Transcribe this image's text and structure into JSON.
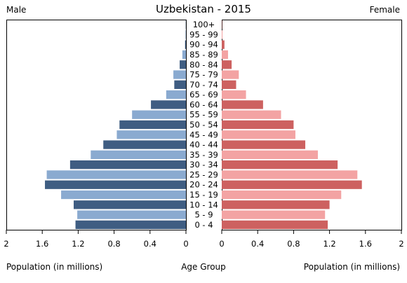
{
  "chart_data": {
    "type": "bar",
    "title": "Uzbekistan - 2015",
    "left_label": "Male",
    "right_label": "Female",
    "xlabel_left": "Population (in millions)",
    "xlabel_center": "Age Group",
    "xlabel_right": "Population (in millions)",
    "xlim": [
      0,
      2
    ],
    "ticks": [
      "2",
      "1.6",
      "1.2",
      "0.8",
      "0.4",
      "0",
      "0",
      "0.4",
      "0.8",
      "1.2",
      "1.6",
      "2"
    ],
    "tick_values_left": [
      2,
      1.6,
      1.2,
      0.8,
      0.4,
      0
    ],
    "tick_values_right": [
      0,
      0.4,
      0.8,
      1.2,
      1.6,
      2
    ],
    "categories": [
      "100+",
      "95 - 99",
      "90 - 94",
      "85 - 89",
      "80 - 84",
      "75 - 79",
      "70 - 74",
      "65 - 69",
      "60 - 64",
      "55 - 59",
      "50 - 54",
      "45 - 49",
      "40 - 44",
      "35 - 39",
      "30 - 34",
      "25 - 29",
      "20 - 24",
      "15 - 19",
      "10 - 14",
      "5 - 9",
      "0 - 4"
    ],
    "series": [
      {
        "name": "Male",
        "values": [
          0.002,
          0.004,
          0.01,
          0.04,
          0.07,
          0.14,
          0.13,
          0.22,
          0.39,
          0.6,
          0.74,
          0.77,
          0.92,
          1.06,
          1.29,
          1.55,
          1.57,
          1.39,
          1.25,
          1.21,
          1.23
        ]
      },
      {
        "name": "Female",
        "values": [
          0.003,
          0.008,
          0.03,
          0.07,
          0.11,
          0.19,
          0.16,
          0.27,
          0.46,
          0.66,
          0.8,
          0.82,
          0.93,
          1.07,
          1.29,
          1.51,
          1.56,
          1.33,
          1.2,
          1.15,
          1.18
        ]
      }
    ],
    "colors": {
      "male_dark": "#3f5d82",
      "male_light": "#8aaad0",
      "female_dark": "#cd6160",
      "female_light": "#f3a3a3"
    }
  }
}
